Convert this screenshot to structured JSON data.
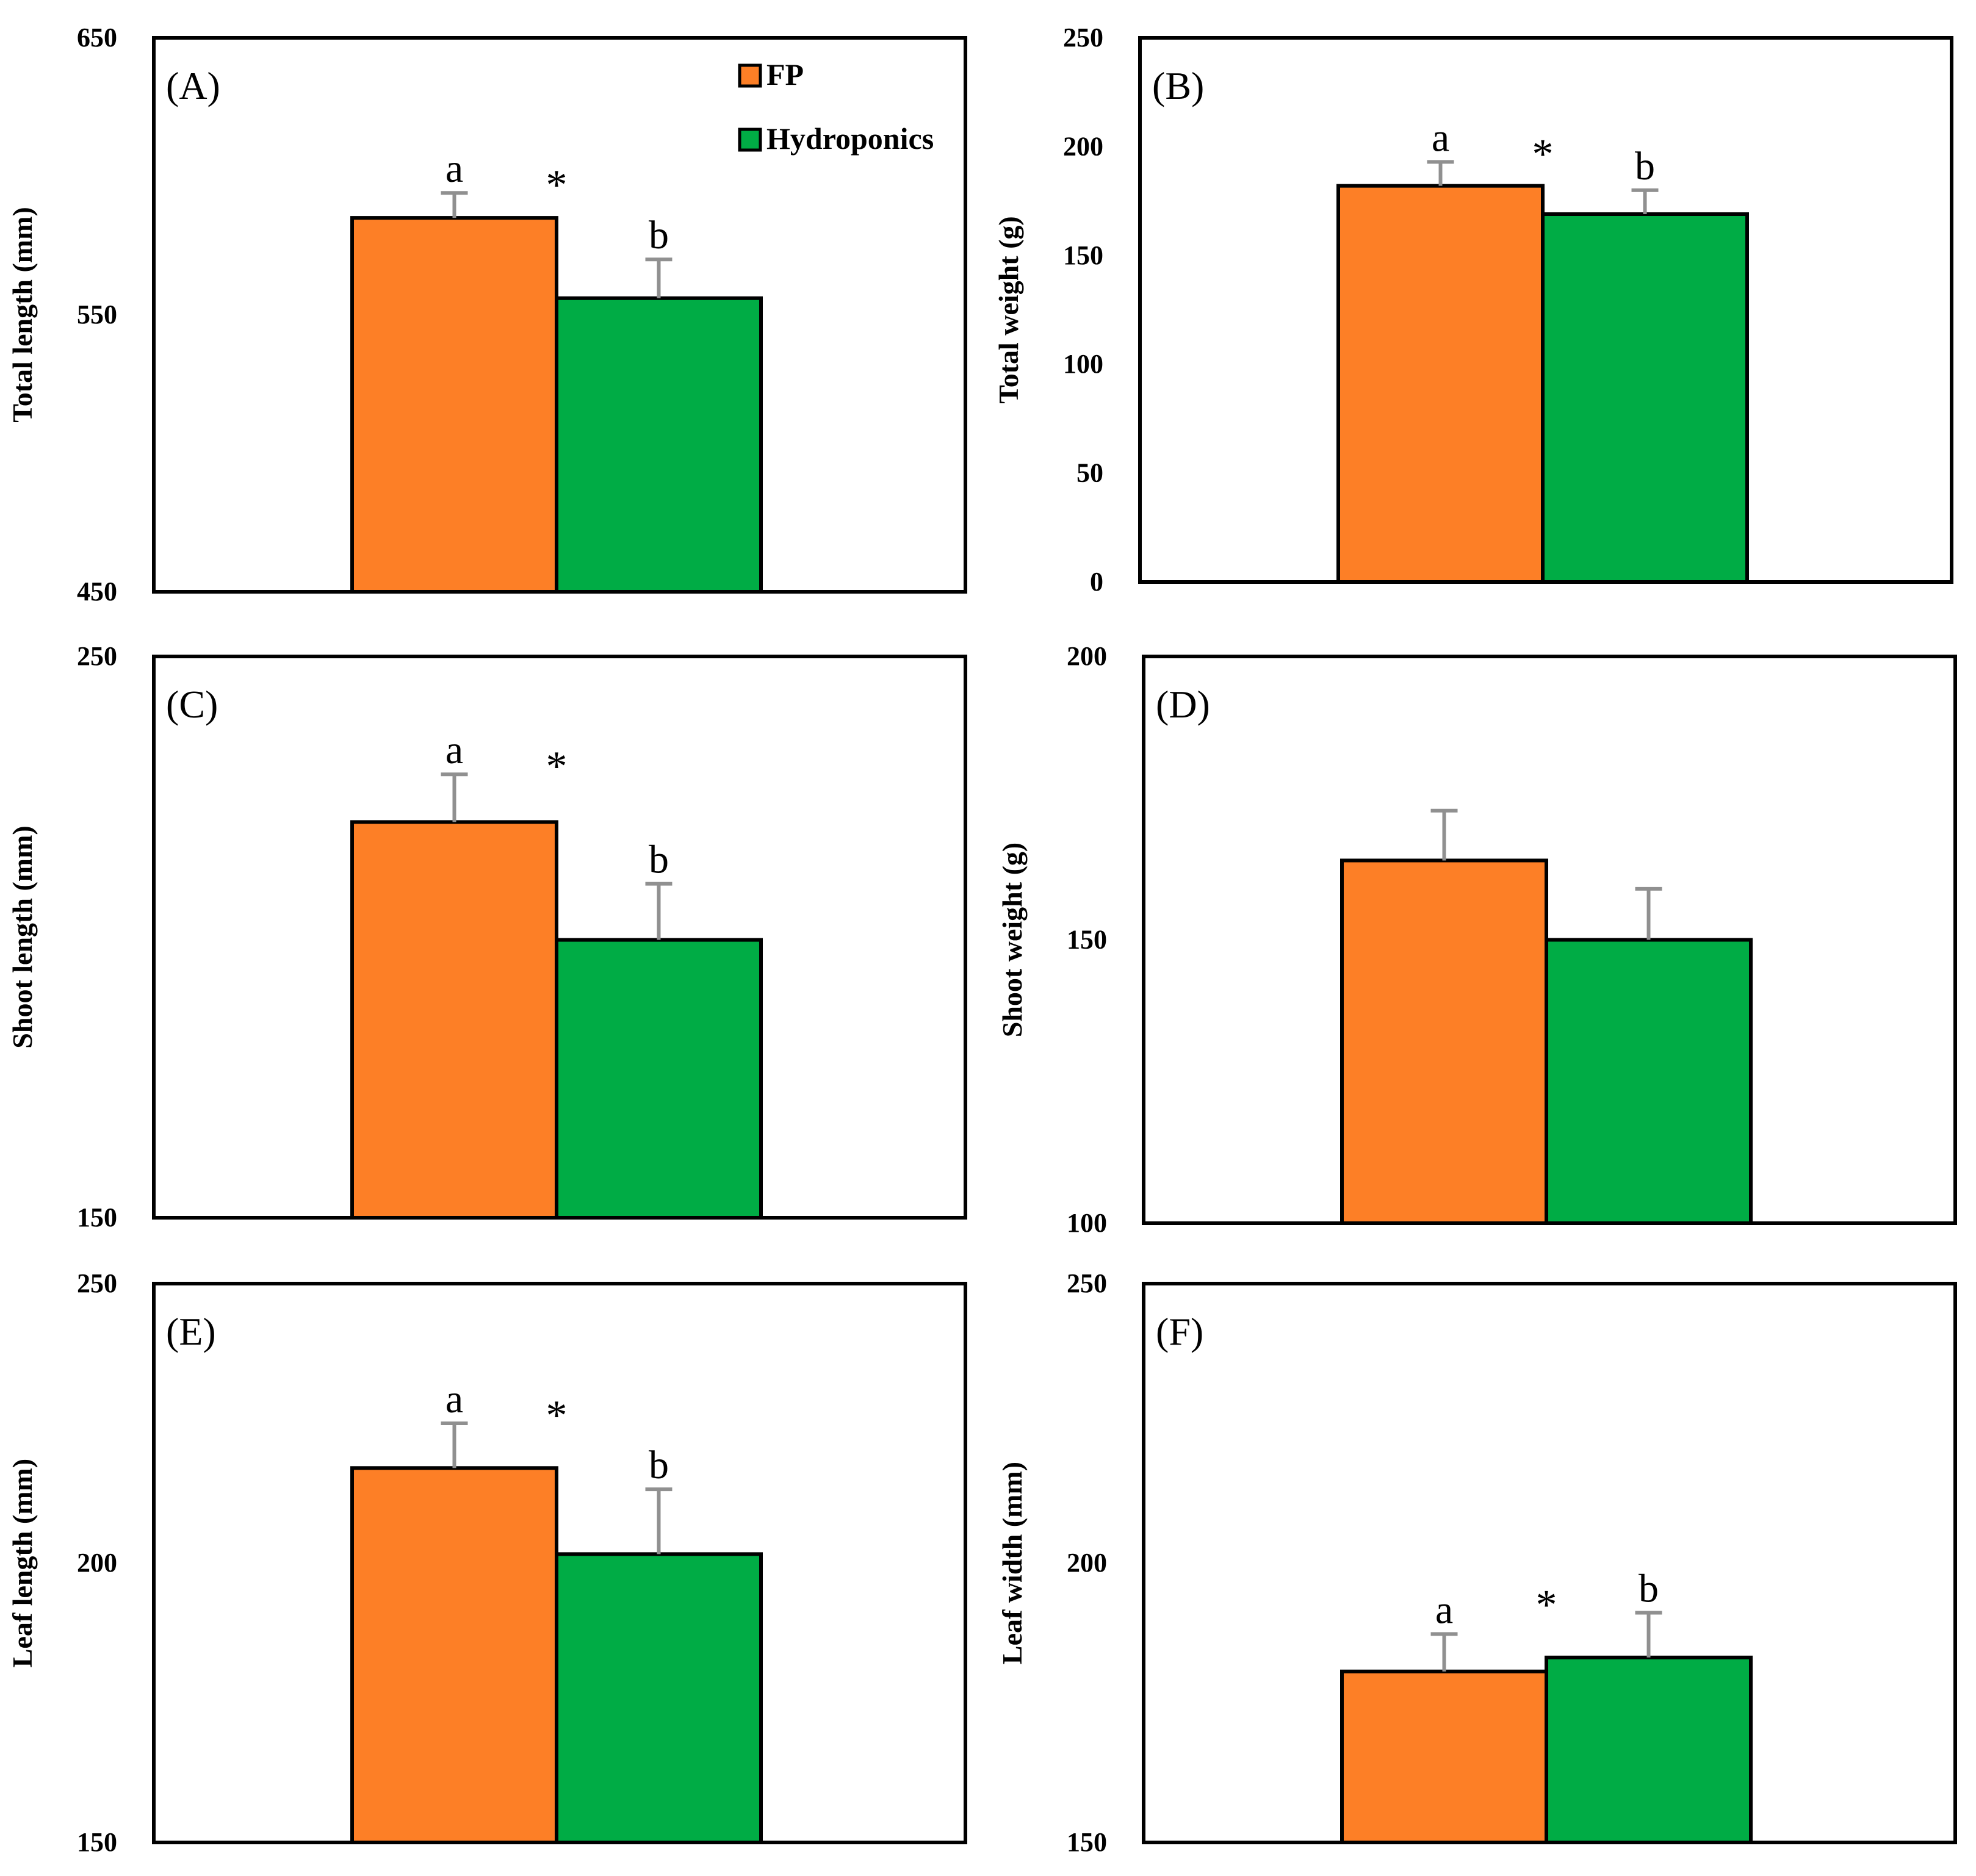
{
  "legend": {
    "items": [
      {
        "label": "FP",
        "color": "#FD7F26"
      },
      {
        "label": "Hydroponics",
        "color": "#00AC45"
      }
    ]
  },
  "chart_data": [
    {
      "id": "A",
      "type": "bar",
      "tag": "(A)",
      "ylabel": "Total length (mm)",
      "ylim": [
        450,
        650
      ],
      "ticks": [
        "650",
        "550",
        "450"
      ],
      "series": [
        {
          "name": "FP",
          "value": 585,
          "err": 9,
          "letter": "a"
        },
        {
          "name": "Hydroponics",
          "value": 556,
          "err": 14,
          "letter": "b"
        }
      ],
      "star": "*"
    },
    {
      "id": "B",
      "type": "bar",
      "tag": "(B)",
      "ylabel": "Total weight (g)",
      "ylim": [
        0,
        250
      ],
      "ticks": [
        "250",
        "200",
        "150",
        "100",
        "50",
        "0"
      ],
      "series": [
        {
          "name": "FP",
          "value": 182,
          "err": 11,
          "letter": "a"
        },
        {
          "name": "Hydroponics",
          "value": 169,
          "err": 11,
          "letter": "b"
        }
      ],
      "star": "*"
    },
    {
      "id": "C",
      "type": "bar",
      "tag": "(C)",
      "ylabel": "Shoot length (mm)",
      "ylim": [
        150,
        250
      ],
      "ticks": [
        "250",
        "150"
      ],
      "series": [
        {
          "name": "FP",
          "value": 220.5,
          "err": 8.5,
          "letter": "a"
        },
        {
          "name": "Hydroponics",
          "value": 199.5,
          "err": 10,
          "letter": "b"
        }
      ],
      "star": "*"
    },
    {
      "id": "D",
      "type": "bar",
      "tag": "(D)",
      "ylabel": "Shoot weight (g)",
      "ylim": [
        100,
        200
      ],
      "ticks": [
        "200",
        "150",
        "100"
      ],
      "series": [
        {
          "name": "FP",
          "value": 164,
          "err": 8.8,
          "letter": ""
        },
        {
          "name": "Hydroponics",
          "value": 150,
          "err": 9,
          "letter": ""
        }
      ],
      "star": ""
    },
    {
      "id": "E",
      "type": "bar",
      "tag": "(E)",
      "ylabel": "Leaf length (mm)",
      "ylim": [
        150,
        250
      ],
      "ticks": [
        "250",
        "200",
        "150"
      ],
      "series": [
        {
          "name": "FP",
          "value": 217,
          "err": 8,
          "letter": "a"
        },
        {
          "name": "Hydroponics",
          "value": 201.6,
          "err": 11.6,
          "letter": "b"
        }
      ],
      "star": "*"
    },
    {
      "id": "F",
      "type": "bar",
      "tag": "(F)",
      "ylabel": "Leaf width (mm)",
      "ylim": [
        150,
        250
      ],
      "ticks": [
        "250",
        "200",
        "150"
      ],
      "series": [
        {
          "name": "FP",
          "value": 180.6,
          "err": 6.7,
          "letter": "a"
        },
        {
          "name": "Hydroponics",
          "value": 183.1,
          "err": 8,
          "letter": "b"
        }
      ],
      "star": "*"
    }
  ]
}
